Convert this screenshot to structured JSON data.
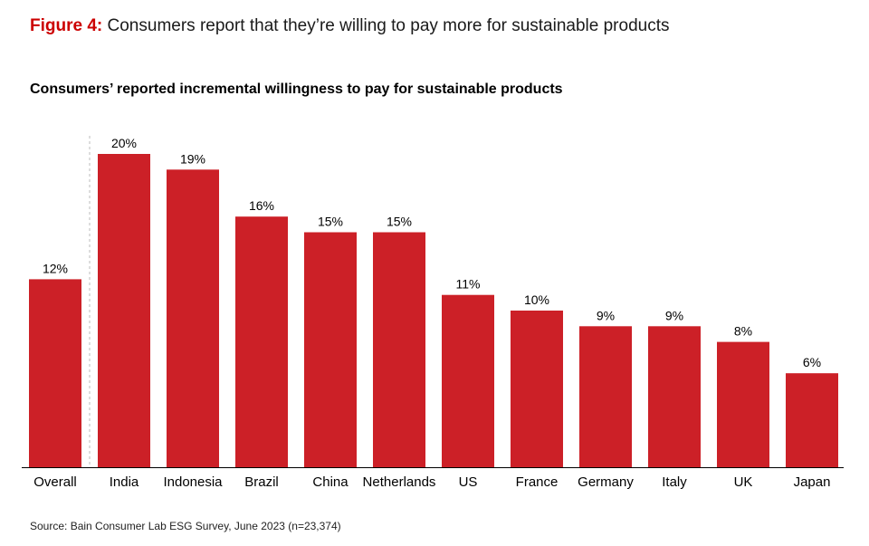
{
  "figure": {
    "label": "Figure 4:",
    "title": "Consumers report that they’re willing to pay more for sustainable products"
  },
  "source": "Source: Bain Consumer Lab ESG Survey, June 2023 (n=23,374)",
  "colors": {
    "bar": "#cc2027",
    "label_accent": "#cc0000"
  },
  "chart_data": {
    "type": "bar",
    "title": "Consumers’ reported incremental willingness to pay for sustainable products",
    "xlabel": "",
    "ylabel": "",
    "categories": [
      "Overall",
      "India",
      "Indonesia",
      "Brazil",
      "China",
      "Netherlands",
      "US",
      "France",
      "Germany",
      "Italy",
      "UK",
      "Japan"
    ],
    "values": [
      12,
      20,
      19,
      16,
      15,
      15,
      11,
      10,
      9,
      9,
      8,
      6
    ],
    "value_labels": [
      "12%",
      "20%",
      "19%",
      "16%",
      "15%",
      "15%",
      "11%",
      "10%",
      "9%",
      "9%",
      "8%",
      "6%"
    ],
    "ylim": [
      0,
      20
    ],
    "grid": false,
    "separator_after": "Overall"
  }
}
